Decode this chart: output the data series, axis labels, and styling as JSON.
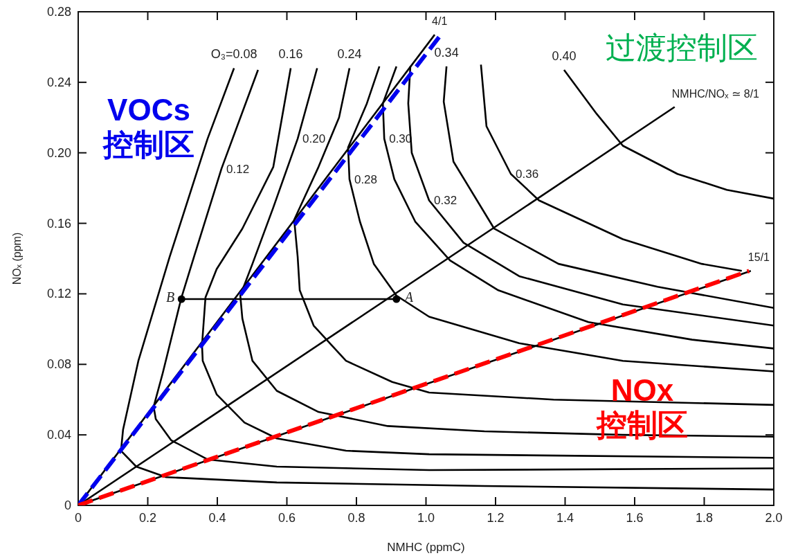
{
  "chart_data": {
    "type": "line",
    "xlabel": "NMHC (ppmC)",
    "ylabel": "NOₓ (ppm)",
    "xlim": [
      0,
      2
    ],
    "ylim": [
      0,
      0.28
    ],
    "xticks": [
      0,
      0.2,
      0.4,
      0.6,
      0.8,
      {
        "value": 1,
        "label": "1.0"
      },
      1.2,
      1.4,
      1.6,
      1.8,
      {
        "value": 2,
        "label": "2.0"
      }
    ],
    "yticks": [
      0,
      0.04,
      0.08,
      0.12,
      0.16,
      {
        "value": 0.2,
        "label": "0.20"
      },
      0.24,
      0.28
    ],
    "series": [
      {
        "type": "line",
        "name": "O₃=0.08",
        "color": "#000000",
        "x": [
          0.448,
          0.372,
          0.263,
          0.173,
          0.129,
          0.123,
          0.167,
          0.253,
          0.571,
          1.168,
          2.0
        ],
        "values": [
          0.248,
          0.208,
          0.141,
          0.082,
          0.043,
          0.031,
          0.022,
          0.016,
          0.013,
          0.011,
          0.009
        ]
      },
      {
        "type": "line",
        "name": "0.12",
        "color": "#000000",
        "x": [
          0.517,
          0.412,
          0.333,
          0.297,
          0.243,
          0.217,
          0.223,
          0.267,
          0.373,
          0.571,
          1.009,
          2.0
        ],
        "values": [
          0.247,
          0.191,
          0.141,
          0.118,
          0.075,
          0.056,
          0.049,
          0.037,
          0.026,
          0.022,
          0.02,
          0.021
        ]
      },
      {
        "type": "line",
        "name": "0.16",
        "color": "#000000",
        "x": [
          0.611,
          0.561,
          0.472,
          0.398,
          0.366,
          0.356,
          0.358,
          0.398,
          0.478,
          0.571,
          0.77,
          1.009,
          2.0
        ],
        "values": [
          0.248,
          0.192,
          0.157,
          0.134,
          0.118,
          0.091,
          0.082,
          0.063,
          0.047,
          0.038,
          0.031,
          0.029,
          0.027
        ]
      },
      {
        "type": "line",
        "name": "0.20",
        "color": "#000000",
        "x": [
          0.687,
          0.631,
          0.561,
          0.501,
          0.466,
          0.472,
          0.501,
          0.571,
          0.691,
          0.89,
          1.168,
          1.566,
          2.0
        ],
        "values": [
          0.248,
          0.208,
          0.169,
          0.137,
          0.119,
          0.106,
          0.082,
          0.065,
          0.053,
          0.045,
          0.042,
          0.04,
          0.039
        ]
      },
      {
        "type": "line",
        "name": "0.24",
        "color": "#000000",
        "x": [
          0.78,
          0.75,
          0.691,
          0.621,
          0.631,
          0.637,
          0.677,
          0.77,
          0.903,
          1.009,
          1.367,
          2.0
        ],
        "values": [
          0.248,
          0.22,
          0.192,
          0.162,
          0.141,
          0.122,
          0.102,
          0.082,
          0.07,
          0.064,
          0.06,
          0.057
        ]
      },
      {
        "type": "line",
        "name": "0.28",
        "color": "#000000",
        "x": [
          0.866,
          0.83,
          0.776,
          0.78,
          0.81,
          0.85,
          0.915,
          1.009,
          1.268,
          1.566,
          2.0
        ],
        "values": [
          0.249,
          0.228,
          0.203,
          0.185,
          0.161,
          0.137,
          0.119,
          0.107,
          0.092,
          0.082,
          0.076
        ]
      },
      {
        "type": "line",
        "name": "0.30",
        "color": "#000000",
        "x": [
          0.915,
          0.876,
          0.88,
          0.909,
          0.969,
          1.069,
          1.208,
          1.467,
          1.765,
          2.0
        ],
        "values": [
          0.249,
          0.228,
          0.208,
          0.185,
          0.161,
          0.139,
          0.122,
          0.104,
          0.094,
          0.089
        ]
      },
      {
        "type": "line",
        "name": "0.32",
        "color": "#000000",
        "x": [
          0.955,
          0.949,
          0.959,
          1.009,
          1.108,
          1.268,
          1.566,
          2.0
        ],
        "values": [
          0.249,
          0.228,
          0.2,
          0.173,
          0.149,
          0.13,
          0.114,
          0.102
        ]
      },
      {
        "type": "line",
        "name": "0.34",
        "color": "#000000",
        "x": [
          1.059,
          1.051,
          1.079,
          1.196,
          1.381,
          1.666,
          2.0
        ],
        "values": [
          0.249,
          0.229,
          0.195,
          0.157,
          0.137,
          0.124,
          0.112
        ]
      },
      {
        "type": "line",
        "name": "0.36",
        "color": "#000000",
        "x": [
          1.158,
          1.174,
          1.244,
          1.325,
          1.566,
          1.793,
          1.908
        ],
        "values": [
          0.25,
          0.215,
          0.188,
          0.173,
          0.151,
          0.137,
          0.133
        ]
      },
      {
        "type": "line",
        "name": "0.40",
        "color": "#000000",
        "x": [
          1.397,
          1.491,
          1.566,
          1.723,
          1.865,
          2.0
        ],
        "values": [
          0.247,
          0.222,
          0.204,
          0.188,
          0.179,
          0.174
        ]
      },
      {
        "type": "line",
        "name": "4/1",
        "color": "#000000",
        "x": [
          0,
          1.025
        ],
        "values": [
          0,
          0.267
        ]
      },
      {
        "type": "line",
        "name": "NMHC/NOₓ ≃ 8/1",
        "color": "#000000",
        "x": [
          0,
          1.715
        ],
        "values": [
          0,
          0.226
        ]
      },
      {
        "type": "line",
        "name": "15/1",
        "color": "#000000",
        "x": [
          0,
          1.934
        ],
        "values": [
          0,
          0.133
        ]
      },
      {
        "type": "line",
        "color": "#000000",
        "x": [
          0.297,
          0.915
        ],
        "values": [
          0.117,
          0.117
        ]
      },
      {
        "type": "scatter",
        "name": "B",
        "color": "#000000",
        "marker": "circle",
        "x": [
          0.297
        ],
        "values": [
          0.117
        ]
      },
      {
        "type": "scatter",
        "name": "A",
        "color": "#000000",
        "marker": "circle",
        "x": [
          0.915
        ],
        "values": [
          0.117
        ]
      },
      {
        "type": "line",
        "color": "#0000ee",
        "line_style": "dashed",
        "x": [
          0,
          1.043
        ],
        "values": [
          0,
          0.267
        ]
      },
      {
        "type": "line",
        "color": "#ff0000",
        "line_style": "dashed",
        "x": [
          0,
          1.929
        ],
        "values": [
          0,
          0.133
        ]
      }
    ],
    "annotations": [
      "VOCs\n控制区",
      "过渡控制区",
      "NOx\n控制区"
    ]
  }
}
